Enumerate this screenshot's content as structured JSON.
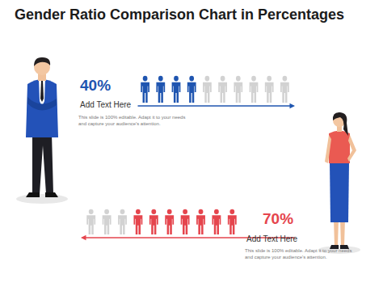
{
  "chart_data": {
    "type": "pictograph",
    "title": "Gender Ratio Comparison Chart in Percentages",
    "categories": [
      "Add Text Here",
      "Add Text Here"
    ],
    "values": [
      40,
      70
    ],
    "value_labels": [
      "40%",
      "70%"
    ],
    "colors": [
      "#1f55b0",
      "#e5454d"
    ],
    "notes": [
      "This slide is 100% editable. Adapt it to your needs and capture your audience's attention.",
      "This slide is 100% editable. Adapt it to your needs and capture your audience's attention."
    ],
    "xlim": [
      0,
      100
    ],
    "icon_value": 10,
    "tick_labels": false,
    "data_labels": true
  }
}
